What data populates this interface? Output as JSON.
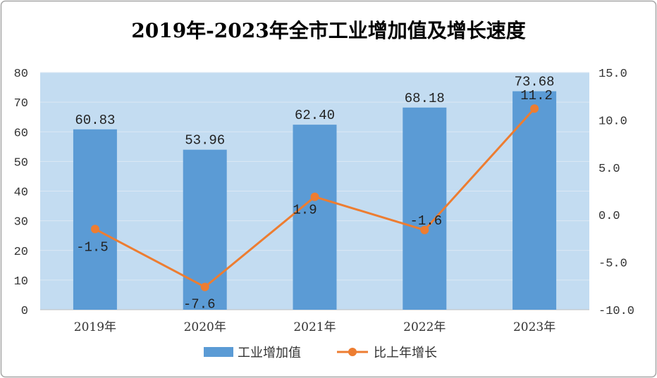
{
  "chart_data": {
    "type": "bar",
    "title": "2019年-2023年全市工业增加值及增长速度",
    "categories": [
      "2019年",
      "2020年",
      "2021年",
      "2022年",
      "2023年"
    ],
    "series": [
      {
        "name": "工业增加值",
        "type": "bar",
        "axis": "left",
        "values": [
          60.83,
          53.96,
          62.4,
          68.18,
          73.68
        ],
        "labels": [
          "60.83",
          "53.96",
          "62.40",
          "68.18",
          "73.68"
        ]
      },
      {
        "name": "比上年增长",
        "type": "line",
        "axis": "right",
        "values": [
          -1.5,
          -7.6,
          1.9,
          -1.6,
          11.2
        ],
        "labels": [
          "-1.5",
          "-7.6",
          "1.9",
          "-1.6",
          "11.2"
        ]
      }
    ],
    "y_left": {
      "min": 0,
      "max": 80,
      "ticks": [
        "0",
        "10",
        "20",
        "30",
        "40",
        "50",
        "60",
        "70",
        "80"
      ]
    },
    "y_right": {
      "min": -10,
      "max": 15,
      "ticks": [
        "-10.0",
        "-5.0",
        "0.0",
        "5.0",
        "10.0",
        "15.0"
      ]
    },
    "grid": true,
    "legend": "bottom",
    "colors": {
      "bar": "#5b9bd5",
      "line": "#ed7d31",
      "plot_bg": "#c3dcf1",
      "grid": "#dce8f4"
    }
  }
}
